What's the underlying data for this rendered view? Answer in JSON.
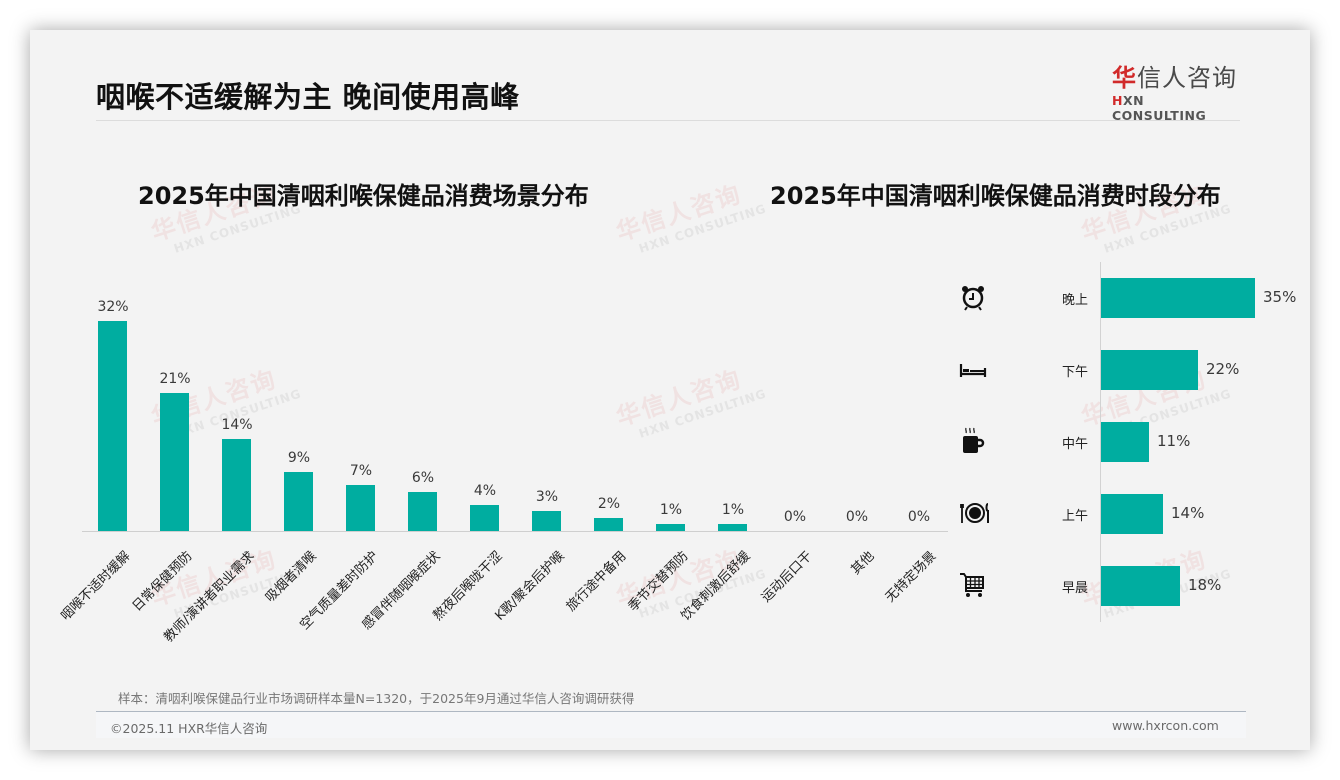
{
  "header": {
    "title": "咽喉不适缓解为主 晚间使用高峰",
    "logo_cn_first": "华",
    "logo_cn_rest": "信人咨询",
    "logo_en_first": "H",
    "logo_en_rest": "XN CONSULTING"
  },
  "watermark": {
    "cn": "华信人咨询",
    "en": "HXN CONSULTING"
  },
  "left_chart": {
    "title": "2025年中国清咽利喉保健品消费场景分布"
  },
  "right_chart": {
    "title": "2025年中国清咽利喉保健品消费时段分布"
  },
  "colors": {
    "bar": "#00ada0",
    "brand_red": "#d12a2a"
  },
  "chart_data": [
    {
      "type": "bar",
      "title": "2025年中国清咽利喉保健品消费场景分布",
      "categories": [
        "咽喉不适时缓解",
        "日常保健预防",
        "教师/演讲者职业需求",
        "吸烟者清喉",
        "空气质量差时防护",
        "感冒伴随咽喉症状",
        "熬夜后喉咙干涩",
        "K歌/聚会后护喉",
        "旅行途中备用",
        "季节交替预防",
        "饮食刺激后舒缓",
        "运动后口干",
        "其他",
        "无特定场景"
      ],
      "values": [
        32,
        21,
        14,
        9,
        7,
        6,
        4,
        3,
        2,
        1,
        1,
        0,
        0,
        0
      ],
      "labels": [
        "32%",
        "21%",
        "14%",
        "9%",
        "7%",
        "6%",
        "4%",
        "3%",
        "2%",
        "1%",
        "1%",
        "0%",
        "0%",
        "0%"
      ],
      "xlabel": "",
      "ylabel": "",
      "unit": "%",
      "ylim": [
        0,
        35
      ],
      "grid": false
    },
    {
      "type": "bar",
      "orientation": "horizontal",
      "title": "2025年中国清咽利喉保健品消费时段分布",
      "categories": [
        "晚上",
        "下午",
        "中午",
        "上午",
        "早晨"
      ],
      "icons": [
        "alarm-clock-icon",
        "bed-icon",
        "coffee-cup-icon",
        "plate-cutlery-icon",
        "shopping-cart-icon"
      ],
      "values": [
        35,
        22,
        11,
        14,
        18
      ],
      "labels": [
        "35%",
        "22%",
        "11%",
        "14%",
        "18%"
      ],
      "unit": "%",
      "xlim": [
        0,
        35
      ],
      "grid": false
    }
  ],
  "footer": {
    "note": "样本：清咽利喉保健品行业市场调研样本量N=1320，于2025年9月通过华信人咨询调研获得",
    "copyright": "©2025.11 HXR华信人咨询",
    "url": "www.hxrcon.com"
  }
}
